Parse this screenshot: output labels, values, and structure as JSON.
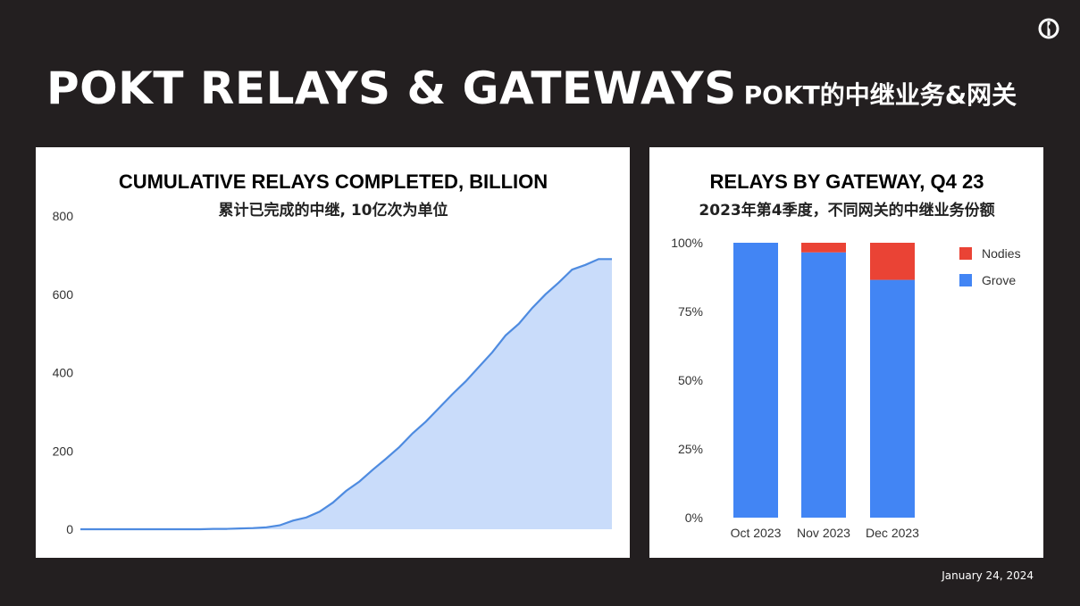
{
  "slide": {
    "title": "POKT RELAYS & GATEWAYS",
    "subtitle": "POKT的中继业务&网关",
    "date": "January 24, 2024"
  },
  "chart_data": [
    {
      "type": "area",
      "title": "CUMULATIVE RELAYS COMPLETED, BILLION",
      "subtitle": "累计已完成的中继, 10亿次为单位",
      "ylim": [
        0,
        800
      ],
      "yticks": [
        0,
        200,
        400,
        600,
        800
      ],
      "grid": false,
      "color": "#c9dcfa",
      "line_color": "#4e8be0",
      "x": [
        0,
        1,
        2,
        3,
        4,
        5,
        6,
        7,
        8,
        9,
        10,
        11,
        12,
        13,
        14,
        15,
        16,
        17,
        18,
        19,
        20,
        21,
        22,
        23,
        24,
        25,
        26,
        27,
        28,
        29,
        30,
        31,
        32,
        33,
        34,
        35,
        36,
        37,
        38,
        39,
        40
      ],
      "values": [
        0,
        0,
        0,
        0,
        0,
        0,
        0,
        0,
        0,
        0,
        1,
        1,
        2,
        3,
        5,
        10,
        22,
        30,
        45,
        68,
        98,
        122,
        152,
        180,
        210,
        245,
        275,
        310,
        345,
        378,
        415,
        452,
        495,
        525,
        565,
        600,
        630,
        663,
        675,
        690,
        690
      ]
    },
    {
      "type": "bar",
      "stacked": true,
      "title": "RELAYS BY GATEWAY, Q4 23",
      "subtitle": "2023年第4季度，不同网关的中继业务份额",
      "categories": [
        "Oct 2023",
        "Nov 2023",
        "Dec 2023"
      ],
      "ylim": [
        0,
        100
      ],
      "yticks": [
        "0%",
        "25%",
        "50%",
        "75%",
        "100%"
      ],
      "legend_position": "top-right",
      "series": [
        {
          "name": "Grove",
          "color": "#4285f4",
          "values": [
            100,
            96.5,
            86.5
          ]
        },
        {
          "name": "Nodies",
          "color": "#ea4335",
          "values": [
            0,
            3.5,
            13.5
          ]
        }
      ]
    }
  ]
}
